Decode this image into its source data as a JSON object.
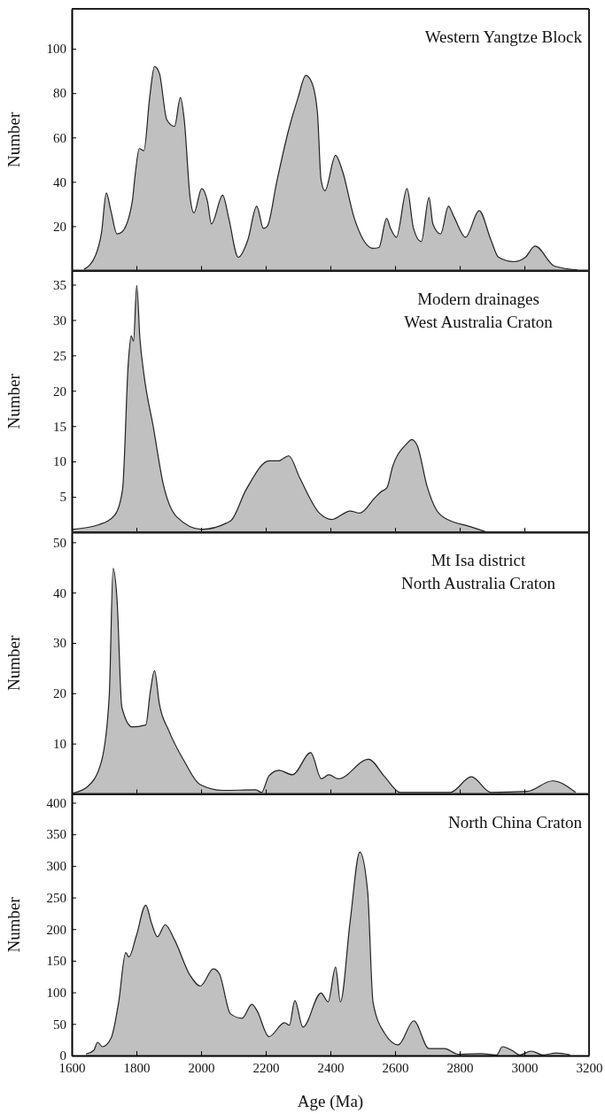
{
  "chart_data": [
    {
      "type": "area",
      "title": "Western Yangtze Block",
      "ylabel": "Number",
      "xlim": [
        1600,
        3200
      ],
      "xticks": [
        1600,
        1800,
        2000,
        2200,
        2400,
        2600,
        2800,
        3000,
        3200
      ],
      "ylim": [
        0,
        118
      ],
      "yticks": [
        20,
        40,
        60,
        80,
        100
      ],
      "tick_labels": "y",
      "series": [
        {
          "color": "#c0c0c0",
          "x": [
            1638,
            1674,
            1692,
            1707,
            1721,
            1740,
            1755,
            1787,
            1796,
            1809,
            1823,
            1841,
            1856,
            1871,
            1894,
            1918,
            1936,
            1948,
            1966,
            1978,
            2002,
            2020,
            2032,
            2067,
            2085,
            2115,
            2145,
            2172,
            2193,
            2205,
            2234,
            2270,
            2300,
            2324,
            2342,
            2360,
            2371,
            2383,
            2416,
            2437,
            2473,
            2532,
            2550,
            2574,
            2586,
            2604,
            2637,
            2657,
            2681,
            2705,
            2717,
            2741,
            2765,
            2783,
            2818,
            2860,
            2896,
            2920,
            2968,
            3003,
            3033,
            3093,
            3164
          ],
          "values": [
            0.5,
            7,
            17,
            35,
            27,
            16.5,
            17.4,
            31,
            43,
            55,
            54,
            78,
            92,
            89,
            68,
            65,
            78,
            68,
            33,
            26,
            37,
            31,
            21,
            34,
            24,
            6,
            14,
            29,
            19,
            20,
            40,
            63,
            78,
            88,
            85,
            71,
            41,
            36,
            52,
            45,
            24,
            10,
            10.4,
            23.5,
            19,
            15,
            37,
            19,
            13,
            33,
            21,
            16.5,
            29,
            24,
            15,
            27,
            14,
            6,
            4,
            6,
            11,
            2,
            0.3
          ]
        }
      ]
    },
    {
      "type": "area",
      "title": "Modern drainages",
      "subtitle": "West Australia Craton",
      "ylabel": "Number",
      "xlim": [
        1600,
        3200
      ],
      "xticks": [
        1600,
        1800,
        2000,
        2200,
        2400,
        2600,
        2800,
        3000,
        3200
      ],
      "ylim": [
        0,
        37
      ],
      "yticks": [
        5,
        10,
        15,
        20,
        25,
        30,
        35
      ],
      "tick_labels": "y",
      "series": [
        {
          "color": "#c0c0c0",
          "x": [
            1602,
            1686,
            1734,
            1757,
            1775,
            1784,
            1791,
            1801,
            1811,
            1823,
            1853,
            1883,
            1924,
            2002,
            2091,
            2139,
            2211,
            2241,
            2253,
            2271,
            2306,
            2366,
            2404,
            2461,
            2491,
            2538,
            2556,
            2575,
            2592,
            2634,
            2652,
            2669,
            2699,
            2735,
            2783,
            2824,
            2878
          ],
          "values": [
            0.4,
            1.1,
            2.5,
            6,
            24,
            27.8,
            27,
            34.9,
            27.3,
            22.4,
            14.7,
            6.8,
            2.2,
            0.4,
            1.6,
            6,
            10.1,
            10.1,
            10.4,
            10.8,
            7.6,
            2.7,
            1.8,
            3,
            2.7,
            4.9,
            5.7,
            6.3,
            9.2,
            12.4,
            13.1,
            12.2,
            6.5,
            2.7,
            1.4,
            0.9,
            0.1
          ]
        }
      ]
    },
    {
      "type": "area",
      "title": "Mt Isa district",
      "subtitle": "North Australia Craton",
      "ylabel": "Number",
      "xlim": [
        1600,
        3200
      ],
      "xticks": [
        1600,
        1800,
        2000,
        2200,
        2400,
        2600,
        2800,
        3000,
        3200
      ],
      "ylim": [
        0,
        52
      ],
      "yticks": [
        10,
        20,
        30,
        40,
        50
      ],
      "tick_labels": "y",
      "series": [
        {
          "color": "#c0c0c0",
          "x": [
            1602,
            1650,
            1692,
            1716,
            1728,
            1740,
            1755,
            1787,
            1829,
            1843,
            1856,
            1871,
            1900,
            1948,
            1996,
            2067,
            2169,
            2187,
            2210,
            2241,
            2283,
            2339,
            2372,
            2395,
            2425,
            2518,
            2568,
            2616,
            2771,
            2836,
            2896,
            3009,
            3087,
            3158
          ],
          "values": [
            0.1,
            1.5,
            6.5,
            19.5,
            44.8,
            38.7,
            17.2,
            13.3,
            13.7,
            20.3,
            24.5,
            17.9,
            12.6,
            6.5,
            1.9,
            0.7,
            0.8,
            0.3,
            3.6,
            4.7,
            3.8,
            8.2,
            3,
            3.8,
            3,
            6.9,
            3.4,
            0.3,
            0.3,
            3.4,
            0.3,
            0.5,
            2.6,
            0.3
          ]
        }
      ]
    },
    {
      "type": "area",
      "title": "North China Craton",
      "ylabel": "Number",
      "xlabel": "Age (Ma)",
      "xlim": [
        1600,
        3200
      ],
      "xticks": [
        1600,
        1800,
        2000,
        2200,
        2400,
        2600,
        2800,
        3000,
        3200
      ],
      "ylim": [
        0,
        414
      ],
      "yticks": [
        0,
        50,
        100,
        150,
        200,
        250,
        300,
        350,
        400
      ],
      "series": [
        {
          "color": "#c0c0c0",
          "x": [
            1644,
            1668,
            1680,
            1695,
            1722,
            1745,
            1767,
            1777,
            1799,
            1829,
            1847,
            1865,
            1889,
            1918,
            1966,
            1998,
            2038,
            2056,
            2091,
            2127,
            2157,
            2172,
            2210,
            2258,
            2273,
            2290,
            2315,
            2371,
            2393,
            2416,
            2431,
            2461,
            2491,
            2515,
            2532,
            2568,
            2610,
            2658,
            2705,
            2753,
            2795,
            2866,
            2914,
            2932,
            2962,
            2986,
            3021,
            3057,
            3099,
            3141
          ],
          "values": [
            2.4,
            8,
            21,
            14,
            28,
            84,
            163,
            156,
            188,
            238,
            209,
            188,
            207,
            183,
            127,
            110,
            137,
            130,
            66,
            59,
            81,
            72,
            30,
            52,
            48,
            87,
            45,
            99,
            85,
            140,
            85,
            212,
            322,
            261,
            84,
            35,
            17,
            55,
            11,
            11,
            2,
            3,
            1,
            14,
            8,
            1,
            7,
            1,
            4,
            1.2
          ]
        }
      ]
    }
  ]
}
